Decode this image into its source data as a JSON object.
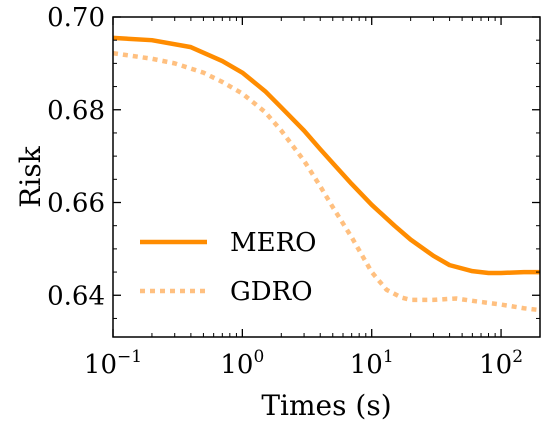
{
  "chart_data": {
    "type": "line",
    "title": "",
    "xlabel": "Times (s)",
    "ylabel": "Risk",
    "xscale": "log",
    "xlim": [
      0.1,
      200
    ],
    "ylim": [
      0.631,
      0.7
    ],
    "x_ticks": [
      {
        "value": 0.1,
        "base": "10",
        "exp": "−1"
      },
      {
        "value": 1,
        "base": "10",
        "exp": "0"
      },
      {
        "value": 10,
        "base": "10",
        "exp": "1"
      },
      {
        "value": 100,
        "base": "10",
        "exp": "2"
      }
    ],
    "y_ticks": [
      {
        "value": 0.64,
        "label": "0.64"
      },
      {
        "value": 0.66,
        "label": "0.66"
      },
      {
        "value": 0.68,
        "label": "0.68"
      },
      {
        "value": 0.7,
        "label": "0.70"
      }
    ],
    "grid": false,
    "legend_position": "lower-left",
    "series": [
      {
        "name": "MERO",
        "color": "#FF8C00",
        "style": "solid",
        "points": [
          [
            0.1,
            0.6955
          ],
          [
            0.2,
            0.695
          ],
          [
            0.4,
            0.6935
          ],
          [
            0.7,
            0.6905
          ],
          [
            1,
            0.688
          ],
          [
            1.5,
            0.684
          ],
          [
            2,
            0.6805
          ],
          [
            3,
            0.6755
          ],
          [
            4,
            0.6715
          ],
          [
            5,
            0.6685
          ],
          [
            7,
            0.664
          ],
          [
            10,
            0.6595
          ],
          [
            15,
            0.655
          ],
          [
            20,
            0.652
          ],
          [
            30,
            0.6485
          ],
          [
            40,
            0.6465
          ],
          [
            60,
            0.6452
          ],
          [
            80,
            0.6448
          ],
          [
            100,
            0.6448
          ],
          [
            150,
            0.645
          ],
          [
            200,
            0.645
          ]
        ]
      },
      {
        "name": "GDRO",
        "color": "#FFC080",
        "style": "dotted",
        "points": [
          [
            0.1,
            0.6922
          ],
          [
            0.2,
            0.691
          ],
          [
            0.3,
            0.69
          ],
          [
            0.5,
            0.688
          ],
          [
            0.7,
            0.686
          ],
          [
            1,
            0.6835
          ],
          [
            1.5,
            0.6795
          ],
          [
            2,
            0.6755
          ],
          [
            3,
            0.669
          ],
          [
            4,
            0.6635
          ],
          [
            5,
            0.659
          ],
          [
            7,
            0.6525
          ],
          [
            10,
            0.645
          ],
          [
            13,
            0.6412
          ],
          [
            17,
            0.6395
          ],
          [
            20,
            0.639
          ],
          [
            30,
            0.639
          ],
          [
            45,
            0.6393
          ],
          [
            60,
            0.6388
          ],
          [
            100,
            0.638
          ],
          [
            150,
            0.6372
          ],
          [
            200,
            0.6368
          ]
        ]
      }
    ]
  }
}
